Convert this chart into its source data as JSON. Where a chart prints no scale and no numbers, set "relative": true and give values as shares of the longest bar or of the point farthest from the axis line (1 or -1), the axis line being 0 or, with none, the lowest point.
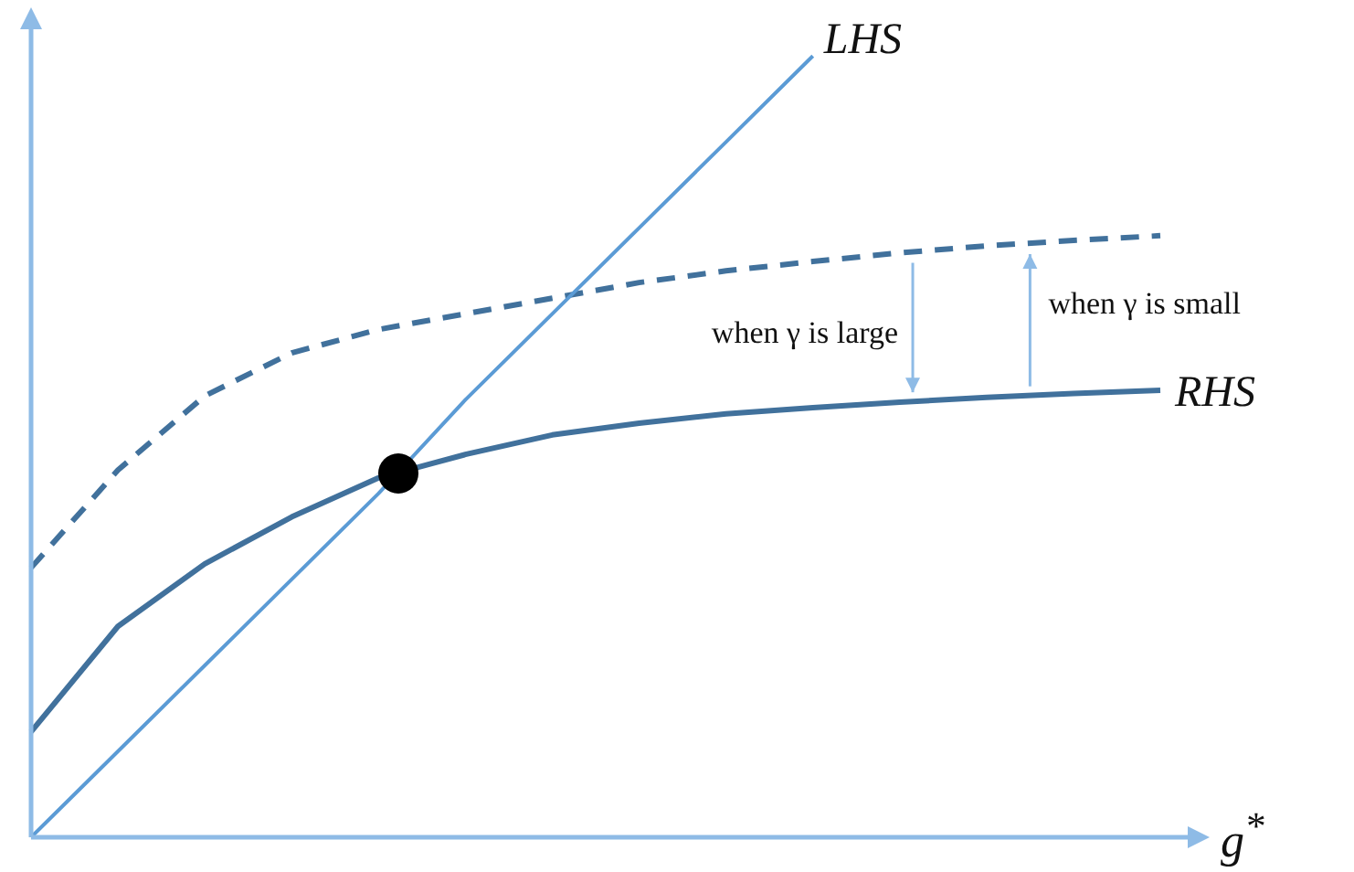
{
  "chart_data": {
    "type": "line",
    "relative": true,
    "xlabel": "g$^{*}$",
    "categories": [
      null,
      null,
      null,
      null,
      null,
      null,
      null,
      null,
      null,
      null,
      null,
      null,
      null,
      null
    ],
    "series": [
      {
        "name": "LHS",
        "color": "#5b9bd5",
        "values": [
          0,
          0.11,
          0.22,
          0.33,
          0.44,
          0.56,
          0.67,
          0.78,
          0.89,
          1,
          null,
          null,
          null,
          null
        ]
      },
      {
        "name": "RHS",
        "color": "#41719c",
        "values": [
          0.135,
          0.27,
          0.35,
          0.41,
          0.46,
          0.49,
          0.515,
          0.53,
          0.542,
          0.55,
          0.557,
          0.563,
          0.568,
          0.572
        ]
      },
      {
        "color": "#41719c",
        "line_style": "dashed",
        "values": [
          0.345,
          0.47,
          0.565,
          0.62,
          0.65,
          0.67,
          0.69,
          0.71,
          0.725,
          0.737,
          0.748,
          0.757,
          0.764,
          0.77
        ]
      }
    ],
    "annotations": [
      "when γ is large",
      "when γ is small"
    ],
    "marker": "none",
    "legend": false
  }
}
